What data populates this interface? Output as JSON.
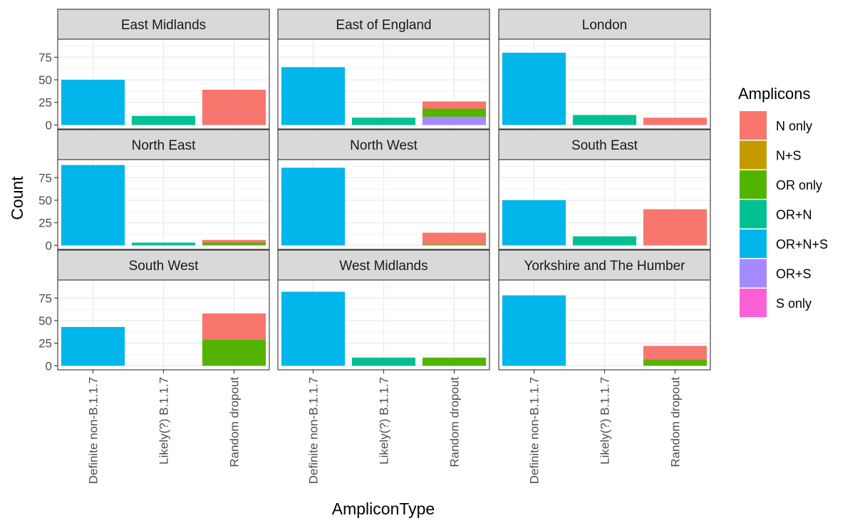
{
  "chart_data": {
    "type": "bar",
    "stacked": true,
    "xlabel": "AmpliconType",
    "ylabel": "Count",
    "ylim": [
      -4.5,
      95
    ],
    "yticks": [
      0,
      25,
      50,
      75
    ],
    "categories": [
      "Definite non-B.1.1.7",
      "Likely(?) B.1.1.7",
      "Random dropout"
    ],
    "grid": true,
    "legend": {
      "title": "Amplicons",
      "position": "right",
      "items": [
        {
          "name": "N only",
          "color": "#F8766D"
        },
        {
          "name": "N+S",
          "color": "#C49A00"
        },
        {
          "name": "OR only",
          "color": "#53B400"
        },
        {
          "name": "OR+N",
          "color": "#00C094"
        },
        {
          "name": "OR+N+S",
          "color": "#00B6EB"
        },
        {
          "name": "OR+S",
          "color": "#A58AFF"
        },
        {
          "name": "S only",
          "color": "#FB61D7"
        }
      ]
    },
    "facets": [
      {
        "title": "East Midlands",
        "bars": [
          {
            "category": "Definite non-B.1.1.7",
            "segments": [
              {
                "series": "OR+N+S",
                "value": 50
              }
            ]
          },
          {
            "category": "Likely(?) B.1.1.7",
            "segments": [
              {
                "series": "OR+N",
                "value": 10
              }
            ]
          },
          {
            "category": "Random dropout",
            "segments": [
              {
                "series": "N only",
                "value": 39
              }
            ]
          }
        ]
      },
      {
        "title": "East of England",
        "bars": [
          {
            "category": "Definite non-B.1.1.7",
            "segments": [
              {
                "series": "OR+N+S",
                "value": 64
              }
            ]
          },
          {
            "category": "Likely(?) B.1.1.7",
            "segments": [
              {
                "series": "OR+N",
                "value": 8
              }
            ]
          },
          {
            "category": "Random dropout",
            "segments": [
              {
                "series": "OR+S",
                "value": 9
              },
              {
                "series": "OR only",
                "value": 9
              },
              {
                "series": "N only",
                "value": 8
              }
            ]
          }
        ]
      },
      {
        "title": "London",
        "bars": [
          {
            "category": "Definite non-B.1.1.7",
            "segments": [
              {
                "series": "OR+N+S",
                "value": 80
              }
            ]
          },
          {
            "category": "Likely(?) B.1.1.7",
            "segments": [
              {
                "series": "OR+N",
                "value": 11
              }
            ]
          },
          {
            "category": "Random dropout",
            "segments": [
              {
                "series": "N only",
                "value": 8
              }
            ]
          }
        ]
      },
      {
        "title": "North East",
        "bars": [
          {
            "category": "Definite non-B.1.1.7",
            "segments": [
              {
                "series": "OR+N+S",
                "value": 89
              }
            ]
          },
          {
            "category": "Likely(?) B.1.1.7",
            "segments": [
              {
                "series": "OR+N",
                "value": 3
              }
            ]
          },
          {
            "category": "Random dropout",
            "segments": [
              {
                "series": "OR only",
                "value": 3
              },
              {
                "series": "N only",
                "value": 3
              }
            ]
          }
        ]
      },
      {
        "title": "North West",
        "bars": [
          {
            "category": "Definite non-B.1.1.7",
            "segments": [
              {
                "series": "OR+N+S",
                "value": 86
              }
            ]
          },
          {
            "category": "Likely(?) B.1.1.7",
            "segments": []
          },
          {
            "category": "Random dropout",
            "segments": [
              {
                "series": "OR only",
                "value": 1
              },
              {
                "series": "N only",
                "value": 13
              }
            ]
          }
        ]
      },
      {
        "title": "South East",
        "bars": [
          {
            "category": "Definite non-B.1.1.7",
            "segments": [
              {
                "series": "OR+N+S",
                "value": 50
              }
            ]
          },
          {
            "category": "Likely(?) B.1.1.7",
            "segments": [
              {
                "series": "OR+N",
                "value": 10
              }
            ]
          },
          {
            "category": "Random dropout",
            "segments": [
              {
                "series": "N only",
                "value": 40
              }
            ]
          }
        ]
      },
      {
        "title": "South West",
        "bars": [
          {
            "category": "Definite non-B.1.1.7",
            "segments": [
              {
                "series": "OR+N+S",
                "value": 43
              }
            ]
          },
          {
            "category": "Likely(?) B.1.1.7",
            "segments": []
          },
          {
            "category": "Random dropout",
            "segments": [
              {
                "series": "OR only",
                "value": 29
              },
              {
                "series": "N only",
                "value": 29
              }
            ]
          }
        ]
      },
      {
        "title": "West Midlands",
        "bars": [
          {
            "category": "Definite non-B.1.1.7",
            "segments": [
              {
                "series": "OR+N+S",
                "value": 82
              }
            ]
          },
          {
            "category": "Likely(?) B.1.1.7",
            "segments": [
              {
                "series": "OR+N",
                "value": 9
              }
            ]
          },
          {
            "category": "Random dropout",
            "segments": [
              {
                "series": "OR only",
                "value": 9
              }
            ]
          }
        ]
      },
      {
        "title": "Yorkshire and The Humber",
        "bars": [
          {
            "category": "Definite non-B.1.1.7",
            "segments": [
              {
                "series": "OR+N+S",
                "value": 78
              }
            ]
          },
          {
            "category": "Likely(?) B.1.1.7",
            "segments": []
          },
          {
            "category": "Random dropout",
            "segments": [
              {
                "series": "OR only",
                "value": 7
              },
              {
                "series": "N only",
                "value": 15
              }
            ]
          }
        ]
      }
    ]
  }
}
